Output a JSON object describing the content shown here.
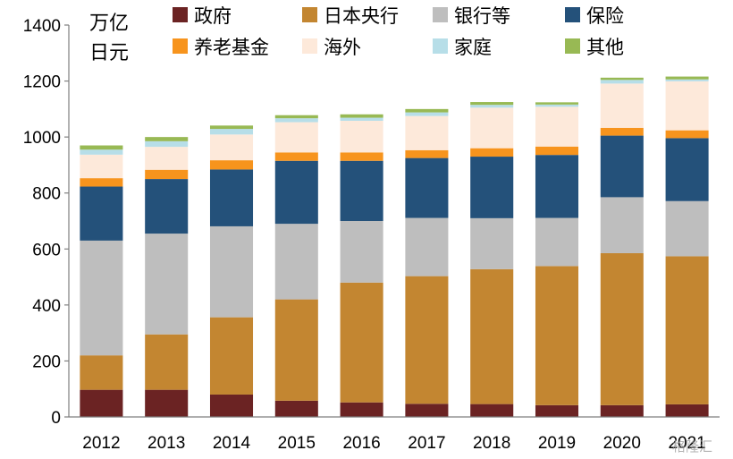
{
  "chart_data": {
    "type": "bar",
    "stacked": true,
    "unit_label_line1": "万亿",
    "unit_label_line2": "日元",
    "categories": [
      "2012",
      "2013",
      "2014",
      "2015",
      "2016",
      "2017",
      "2018",
      "2019",
      "2020",
      "2021"
    ],
    "ylim": [
      0,
      1400
    ],
    "yticks": [
      0,
      200,
      400,
      600,
      800,
      1000,
      1200,
      1400
    ],
    "grid": false,
    "legend_position": "top",
    "series": [
      {
        "name": "政府",
        "color": "#6B2323",
        "values": [
          97,
          97,
          80,
          58,
          52,
          47,
          46,
          42,
          42,
          45
        ]
      },
      {
        "name": "日本央行",
        "color": "#C38631",
        "values": [
          123,
          198,
          276,
          362,
          428,
          456,
          482,
          497,
          543,
          529
        ]
      },
      {
        "name": "银行等",
        "color": "#BEBEBE",
        "values": [
          410,
          360,
          325,
          270,
          220,
          208,
          182,
          172,
          200,
          197
        ]
      },
      {
        "name": "保险",
        "color": "#24517A",
        "values": [
          193,
          195,
          203,
          225,
          215,
          214,
          220,
          225,
          220,
          225
        ]
      },
      {
        "name": "养老基金",
        "color": "#F7941D",
        "values": [
          30,
          33,
          33,
          30,
          30,
          28,
          30,
          30,
          28,
          28
        ]
      },
      {
        "name": "海外",
        "color": "#FDE9DA",
        "values": [
          84,
          82,
          92,
          108,
          113,
          122,
          145,
          142,
          158,
          175
        ]
      },
      {
        "name": "家庭",
        "color": "#B7DEE8",
        "values": [
          18,
          20,
          20,
          14,
          11,
          13,
          10,
          8,
          13,
          7
        ]
      },
      {
        "name": "其他",
        "color": "#98B954",
        "values": [
          15,
          15,
          12,
          11,
          12,
          12,
          10,
          8,
          8,
          10
        ]
      }
    ]
  },
  "watermark": "格隆汇"
}
